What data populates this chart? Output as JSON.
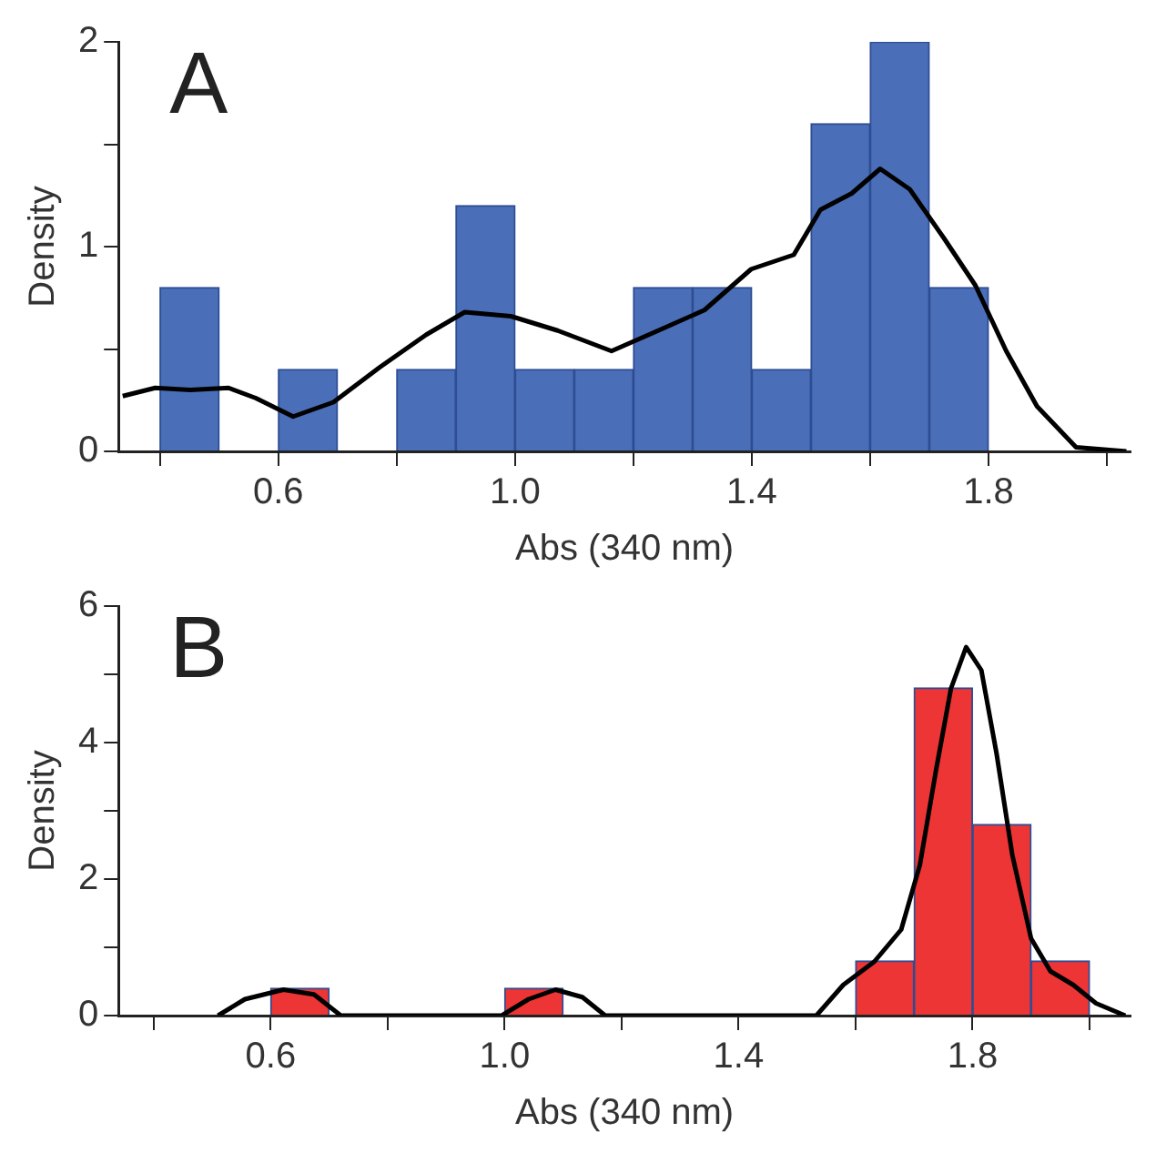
{
  "chart_data": [
    {
      "type": "histogram",
      "title": "A",
      "xlabel": "Abs (340 nm)",
      "ylabel": "Density",
      "xlim": [
        0.33,
        2.04
      ],
      "ylim": [
        0,
        2
      ],
      "xticks": [
        {
          "value": 0.4,
          "label": null
        },
        0.6,
        {
          "value": 0.8,
          "label": null
        },
        {
          "value": 1,
          "label": "1.0"
        },
        {
          "value": 1.2,
          "label": null
        },
        1.4,
        {
          "value": 1.6,
          "label": null
        },
        1.8,
        {
          "value": 2,
          "label": null
        }
      ],
      "yticks": [
        0,
        {
          "value": 0.5,
          "label": null
        },
        1,
        {
          "value": 1.5,
          "label": null
        },
        2
      ],
      "series": [
        {
          "type": "histogram",
          "color": "#4a6fb8",
          "bins": [
            0.4,
            0.5,
            0.6,
            0.7,
            0.8,
            0.9,
            1.0,
            1.1,
            1.2,
            1.3,
            1.4,
            1.5,
            1.6,
            1.7,
            1.8,
            1.9,
            2.0
          ],
          "values": [
            0.8,
            0,
            0.4,
            0,
            0.4,
            1.2,
            0.4,
            0.4,
            0.8,
            0.8,
            0.4,
            1.6,
            2.0,
            0.8,
            0,
            0
          ]
        },
        {
          "type": "line",
          "color": "#000000",
          "x": [
            0.337,
            0.392,
            0.451,
            0.516,
            0.562,
            0.625,
            0.693,
            0.771,
            0.85,
            0.915,
            0.993,
            1.072,
            1.163,
            1.242,
            1.32,
            1.399,
            1.471,
            1.516,
            1.569,
            1.617,
            1.667,
            1.725,
            1.778,
            1.83,
            1.882,
            1.948,
            2.033
          ],
          "values": [
            0.27,
            0.31,
            0.3,
            0.31,
            0.26,
            0.17,
            0.24,
            0.41,
            0.57,
            0.68,
            0.66,
            0.59,
            0.49,
            0.59,
            0.69,
            0.89,
            0.96,
            1.18,
            1.26,
            1.38,
            1.28,
            1.04,
            0.81,
            0.49,
            0.22,
            0.02,
            0
          ]
        }
      ]
    },
    {
      "type": "histogram",
      "title": "B",
      "xlabel": "Abs (340 nm)",
      "ylabel": "Density",
      "xlim": [
        0.34,
        2.07
      ],
      "ylim": [
        0,
        6
      ],
      "xticks": [
        {
          "value": 0.4,
          "label": null
        },
        0.6,
        {
          "value": 0.8,
          "label": null
        },
        {
          "value": 1,
          "label": "1.0"
        },
        {
          "value": 1.2,
          "label": null
        },
        1.4,
        {
          "value": 1.6,
          "label": null
        },
        1.8,
        {
          "value": 2,
          "label": null
        }
      ],
      "yticks": [
        0,
        {
          "value": 1,
          "label": null
        },
        2,
        {
          "value": 3,
          "label": null
        },
        4,
        {
          "value": 5,
          "label": null
        },
        6
      ],
      "series": [
        {
          "type": "histogram",
          "color": "#ee3535",
          "bins": [
            0.4,
            0.5,
            0.6,
            0.7,
            0.8,
            0.9,
            1.0,
            1.1,
            1.2,
            1.3,
            1.4,
            1.5,
            1.6,
            1.7,
            1.8,
            1.9,
            2.0
          ],
          "values": [
            0,
            0,
            0.4,
            0,
            0,
            0,
            0.4,
            0,
            0,
            0,
            0,
            0,
            0.8,
            4.8,
            2.8,
            0.8
          ]
        },
        {
          "type": "line",
          "color": "#000000",
          "x": [
            0.51,
            0.556,
            0.622,
            0.674,
            0.72,
            0.995,
            1.041,
            1.087,
            1.133,
            1.172,
            1.533,
            1.579,
            1.632,
            1.678,
            1.71,
            1.737,
            1.763,
            1.789,
            1.815,
            1.841,
            1.868,
            1.9,
            1.933,
            1.972,
            2.011,
            2.061
          ],
          "values": [
            0,
            0.24,
            0.38,
            0.31,
            0,
            0,
            0.24,
            0.38,
            0.27,
            0,
            0,
            0.45,
            0.79,
            1.26,
            2.21,
            3.57,
            4.79,
            5.4,
            5.06,
            3.84,
            2.35,
            1.13,
            0.65,
            0.45,
            0.18,
            0
          ]
        }
      ]
    }
  ]
}
